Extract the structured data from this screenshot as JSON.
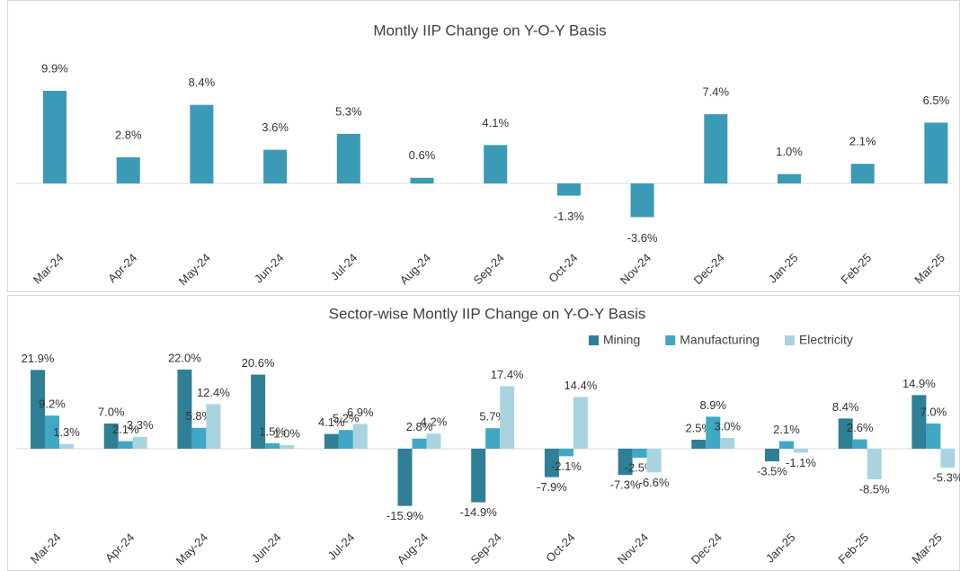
{
  "chart_data": [
    {
      "type": "bar",
      "title": "Montly IIP Change on Y-O-Y Basis",
      "categories": [
        "Mar-24",
        "Apr-24",
        "May-24",
        "Jun-24",
        "Jul-24",
        "Aug-24",
        "Sep-24",
        "Oct-24",
        "Nov-24",
        "Dec-24",
        "Jan-25",
        "Feb-25",
        "Mar-25"
      ],
      "values": [
        9.9,
        2.8,
        8.4,
        3.6,
        5.3,
        0.6,
        4.1,
        -1.3,
        -3.6,
        7.4,
        1.0,
        2.1,
        6.5
      ],
      "value_labels": [
        "9.9%",
        "2.8%",
        "8.4%",
        "3.6%",
        "5.3%",
        "0.6%",
        "4.1%",
        "-1.3%",
        "-3.6%",
        "7.4%",
        "1.0%",
        "2.1%",
        "6.5%"
      ],
      "color": "#3b9ab6"
    },
    {
      "type": "bar",
      "title": "Sector-wise Montly IIP Change on Y-O-Y Basis",
      "categories": [
        "Mar-24",
        "Apr-24",
        "May-24",
        "Jun-24",
        "Jul-24",
        "Aug-24",
        "Sep-24",
        "Oct-24",
        "Nov-24",
        "Dec-24",
        "Jan-25",
        "Feb-25",
        "Mar-25"
      ],
      "series": [
        {
          "name": "Mining",
          "color": "#2f7f96",
          "values": [
            21.9,
            7.0,
            22.0,
            20.6,
            4.1,
            -15.9,
            -14.9,
            -7.9,
            -7.3,
            2.5,
            -3.5,
            8.4,
            14.9
          ],
          "value_labels": [
            "21.9%",
            "7.0%",
            "22.0%",
            "20.6%",
            "4.1%",
            "-15.9%",
            "-14.9%",
            "-7.9%",
            "-7.3%",
            "2.5%",
            "-3.5%",
            "8.4%",
            "14.9%"
          ]
        },
        {
          "name": "Manufacturing",
          "color": "#40a8c4",
          "values": [
            9.2,
            2.1,
            5.8,
            1.5,
            5.2,
            2.8,
            5.7,
            -2.1,
            -2.5,
            8.9,
            2.1,
            2.6,
            7.0
          ],
          "value_labels": [
            "9.2%",
            "2.1%",
            "5.8%",
            "1.5%",
            "5.2%",
            "2.8%",
            "5.7%",
            "-2.1%",
            "-2.5%",
            "8.9%",
            "2.1%",
            "2.6%",
            "7.0%"
          ]
        },
        {
          "name": "Electricity",
          "color": "#a9d4df",
          "values": [
            1.3,
            3.3,
            12.4,
            1.0,
            6.9,
            4.2,
            17.4,
            14.4,
            -6.6,
            3.0,
            -1.1,
            -8.5,
            -5.3
          ],
          "value_labels": [
            "1.3%",
            "3.3%",
            "12.4%",
            "1.0%",
            "6.9%",
            "4.2%",
            "17.4%",
            "14.4%",
            "-6.6%",
            "3.0%",
            "-1.1%",
            "-8.5%",
            "-5.3%"
          ]
        }
      ],
      "legend": "top-right"
    }
  ]
}
